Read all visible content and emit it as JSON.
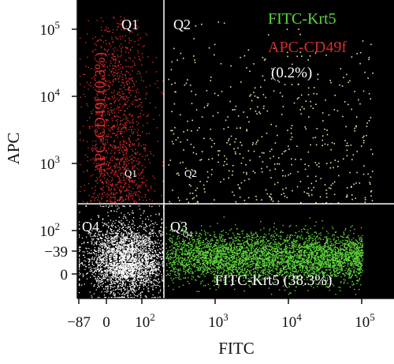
{
  "chart_data": {
    "type": "scatter",
    "subtype": "flow-cytometry-quadrant-dot-plot",
    "xlabel": "FITC",
    "ylabel": "APC",
    "x_axis": {
      "scale": "biexponential",
      "range": [
        -87,
        250000
      ],
      "ticks": [
        {
          "value": -87,
          "label": "−87"
        },
        {
          "value": 0,
          "label": "0"
        },
        {
          "value": 100,
          "label": "10",
          "exp": "2"
        },
        {
          "value": 1000,
          "label": "10",
          "exp": "3"
        },
        {
          "value": 10000,
          "label": "10",
          "exp": "4"
        },
        {
          "value": 100000,
          "label": "10",
          "exp": "5"
        }
      ]
    },
    "y_axis": {
      "scale": "biexponential",
      "range": [
        -39,
        250000
      ],
      "ticks": [
        {
          "value": -39,
          "label": "−39"
        },
        {
          "value": 0,
          "label": "0"
        },
        {
          "value": 100,
          "label": "10",
          "exp": "2"
        },
        {
          "value": 1000,
          "label": "10",
          "exp": "3"
        },
        {
          "value": 10000,
          "label": "10",
          "exp": "4"
        },
        {
          "value": 100000,
          "label": "10",
          "exp": "5"
        }
      ]
    },
    "gate": {
      "x": 200,
      "y": 250
    },
    "quadrants": [
      {
        "id": "Q1",
        "label": "Q1",
        "inner_label": "Q1",
        "percent": 0.3,
        "color": "#d42b2b"
      },
      {
        "id": "Q2",
        "label": "Q2",
        "inner_label": "Q2",
        "percent": 0.2,
        "color": "#e8e4a8"
      },
      {
        "id": "Q3",
        "label": "Q3",
        "inner_label": "Q4",
        "percent": 38.3,
        "color": "#5fd83c"
      },
      {
        "id": "Q4",
        "label": "Q4",
        "inner_label": "",
        "percent": 61.2,
        "color": "#ffffff"
      }
    ],
    "annotations": {
      "q1_percent_text": "APC-CD49f (0.3%)",
      "legend_green": "FITC-Krt5",
      "legend_red": "APC-CD49f",
      "q2_percent_text": "(0.2%)",
      "q4_percent_text": "61.2%",
      "q3_percent_text": "FITC-Krt5 (38.3%)"
    },
    "background": "#000000",
    "grid": false,
    "legend": "top-right"
  }
}
